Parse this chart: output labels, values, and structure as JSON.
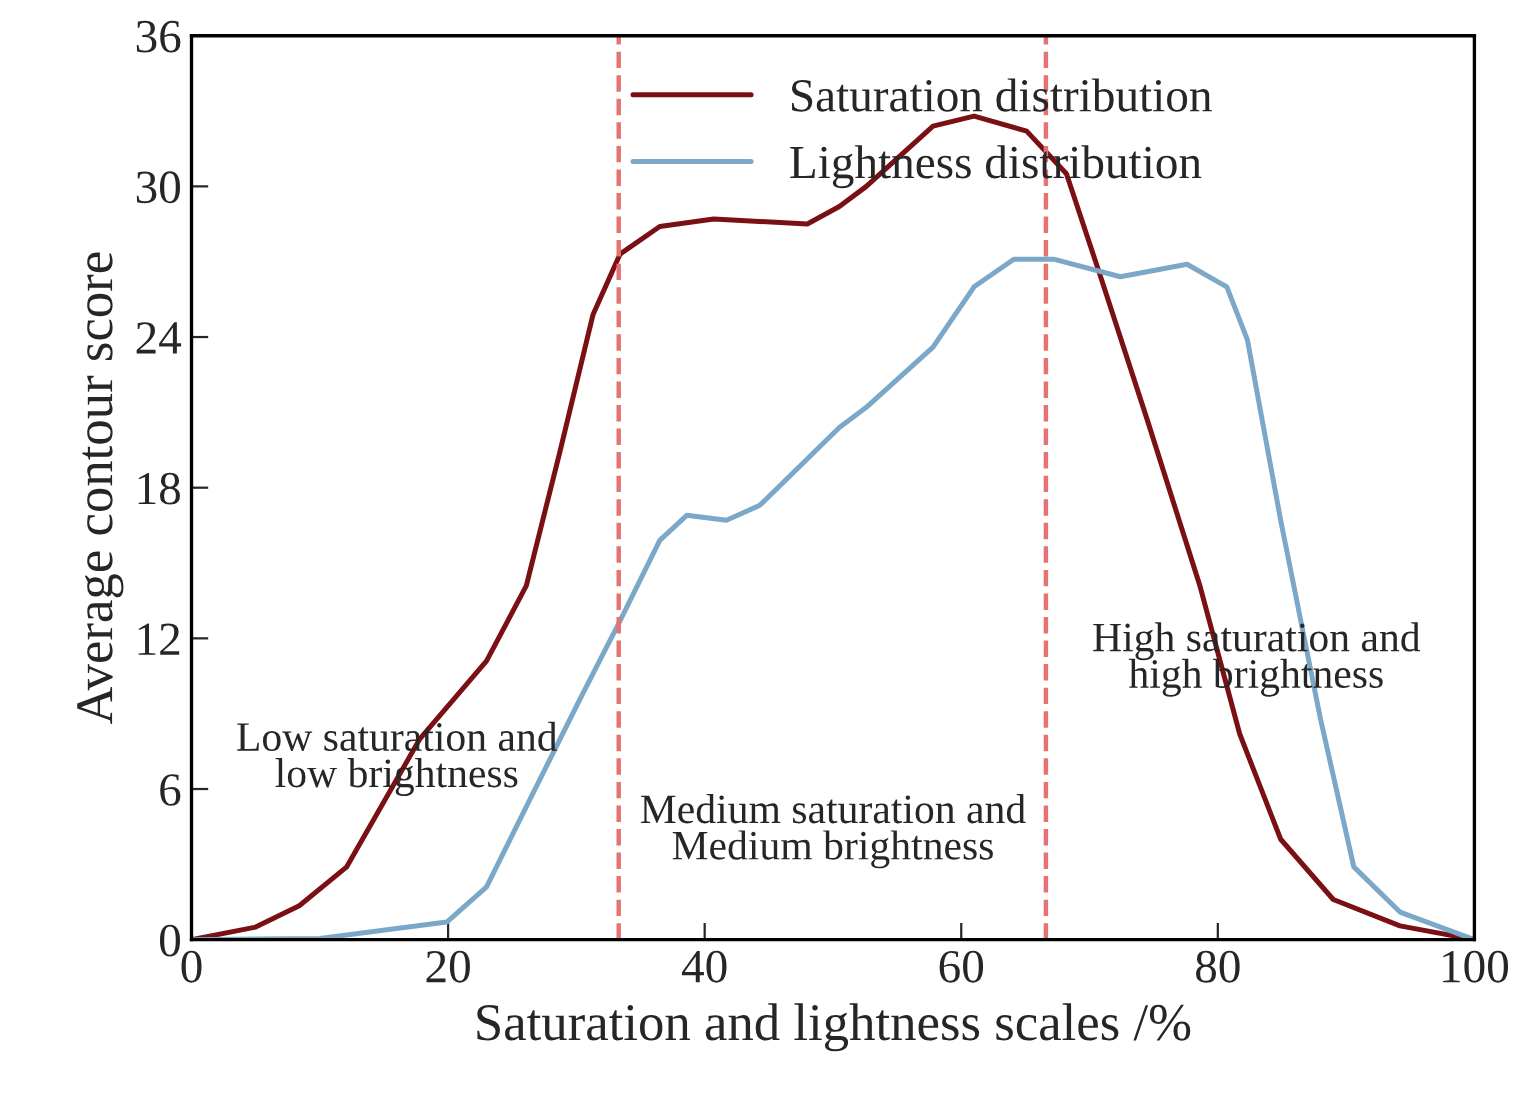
{
  "chart_data": {
    "type": "line",
    "xlabel": "Saturation and lightness scales /%",
    "ylabel": "Average contour score",
    "xlim": [
      0,
      100
    ],
    "xticks": [
      0,
      20,
      40,
      60,
      80,
      100
    ],
    "ylim": [
      0,
      36
    ],
    "yticks": [
      0,
      6,
      12,
      18,
      24,
      30,
      36
    ],
    "grid": false,
    "legend": "top",
    "line_style": "solid",
    "series": [
      {
        "name": "Saturation distribution",
        "color": "#7b1014",
        "x": [
          0,
          5,
          8.4,
          12.1,
          17.8,
          23.0,
          26.1,
          28.7,
          31.3,
          33.4,
          36.5,
          40.7,
          48.0,
          50.5,
          52.6,
          57.8,
          61.0,
          65.1,
          68.2,
          70.8,
          74.5,
          78.6,
          81.7,
          84.9,
          89.0,
          94.2,
          100
        ],
        "values": [
          0,
          0.5,
          1.35,
          2.9,
          8.0,
          11.1,
          14.1,
          19.4,
          24.9,
          27.3,
          28.4,
          28.7,
          28.5,
          29.2,
          30.0,
          32.4,
          32.8,
          32.2,
          30.5,
          26.5,
          20.7,
          14.1,
          8.2,
          4.0,
          1.6,
          0.55,
          0
        ]
      },
      {
        "name": "Lightness distribution",
        "color": "#7ba7c9",
        "x": [
          0,
          10,
          19.9,
          23.0,
          26.1,
          30.3,
          33.4,
          36.5,
          38.6,
          41.7,
          44.3,
          50.5,
          52.6,
          57.8,
          61.0,
          64.1,
          67.2,
          72.4,
          77.6,
          80.7,
          82.3,
          84.9,
          88.0,
          90.6,
          94.2,
          100
        ],
        "values": [
          0,
          0.05,
          0.7,
          2.1,
          5.3,
          9.6,
          12.7,
          15.9,
          16.9,
          16.7,
          17.3,
          20.4,
          21.2,
          23.6,
          26.0,
          27.1,
          27.1,
          26.4,
          26.9,
          26.0,
          23.9,
          16.7,
          8.8,
          2.9,
          1.1,
          0
        ]
      }
    ],
    "ref_lines": [
      {
        "axis": "x",
        "value": 33.3,
        "color": "#e57373",
        "line_style": "dashed"
      },
      {
        "axis": "x",
        "value": 66.6,
        "color": "#e57373",
        "line_style": "dashed"
      }
    ],
    "annotations": [
      "Low saturation and\nlow brightness",
      "Medium saturation and\nMedium brightness",
      "High saturation and\nhigh brightness"
    ]
  }
}
